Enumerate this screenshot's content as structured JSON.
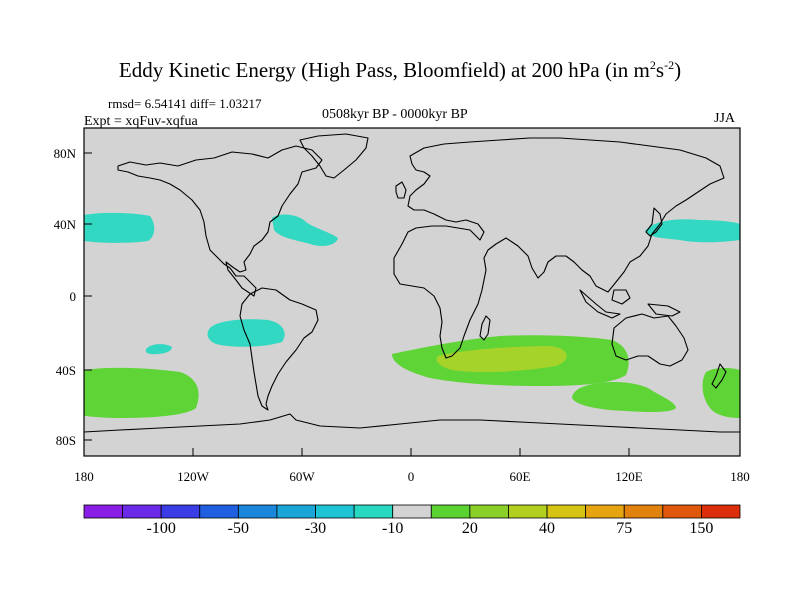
{
  "title": {
    "main": "Eddy Kinetic Energy (High Pass, Bloomfield) at 200 hPa (in m",
    "sup1": "2",
    "mid": "s",
    "sup2": "-2",
    "end": ")"
  },
  "stats": "rmsd= 6.54141 diff= 1.03217",
  "expt": "Expt = xqFuv-xqfua",
  "period": "0508kyr BP - 0000kyr BP",
  "season": "JJA",
  "map": {
    "projection": "cylindrical equidistant",
    "background_color": "#d3d3d3",
    "lat_ticks": [
      "80N",
      "40N",
      "0",
      "40S",
      "80S"
    ],
    "lon_ticks": [
      "180",
      "120W",
      "60W",
      "0",
      "60E",
      "120E",
      "180"
    ],
    "anomalies": [
      {
        "name": "n-pacific-east",
        "level": "-10",
        "color": "#33d8c2"
      },
      {
        "name": "n-atlantic-west",
        "level": "-10",
        "color": "#33d8c2"
      },
      {
        "name": "nw-pacific",
        "level": "-10",
        "color": "#33d8c2"
      },
      {
        "name": "se-pacific",
        "level": "-10",
        "color": "#33d8c2"
      },
      {
        "name": "s-pacific-small",
        "level": "-10",
        "color": "#33d8c2"
      },
      {
        "name": "south-pacific",
        "level": "20",
        "color": "#5fd437"
      },
      {
        "name": "south-atlantic-indian",
        "level": "20",
        "color": "#5fd437"
      },
      {
        "name": "south-indian-core",
        "level": "40",
        "color": "#a5d32a"
      },
      {
        "name": "south-of-australia",
        "level": "20",
        "color": "#5fd437"
      },
      {
        "name": "tasman-sea",
        "level": "20",
        "color": "#5fd437"
      }
    ]
  },
  "colorbar": {
    "colors": [
      "#8a1ee6",
      "#6b2ae8",
      "#3a3ce6",
      "#2060e0",
      "#1a86dc",
      "#1aa6d8",
      "#1ec4d4",
      "#28d8c0",
      "#d3d3d3",
      "#5ad232",
      "#8ad028",
      "#b2ce1e",
      "#d6c414",
      "#e6a410",
      "#e2820e",
      "#e0580c",
      "#dc2e0a"
    ],
    "labels": [
      "-100",
      "-50",
      "-30",
      "-10",
      "20",
      "40",
      "75",
      "150"
    ]
  }
}
